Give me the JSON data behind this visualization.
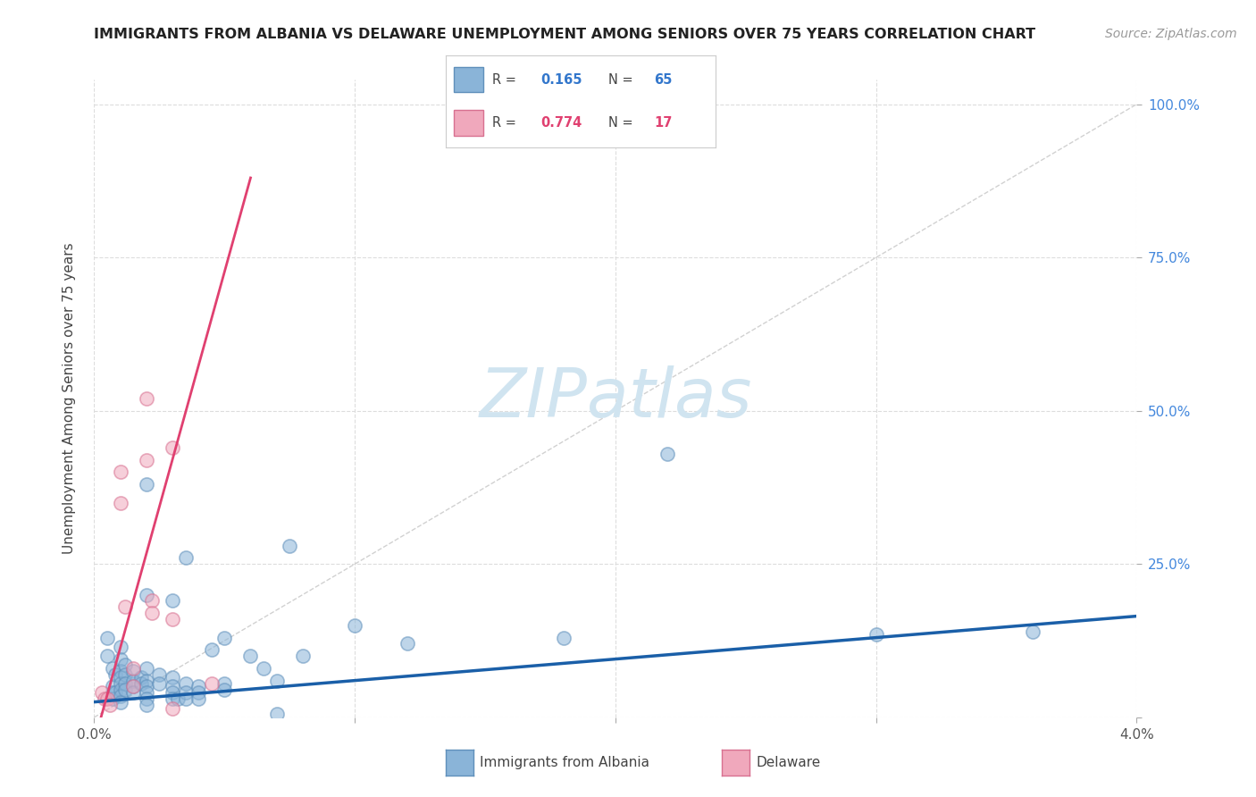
{
  "title": "IMMIGRANTS FROM ALBANIA VS DELAWARE UNEMPLOYMENT AMONG SENIORS OVER 75 YEARS CORRELATION CHART",
  "source": "Source: ZipAtlas.com",
  "ylabel": "Unemployment Among Seniors over 75 years",
  "xlim": [
    0.0,
    0.04
  ],
  "ylim": [
    0.0,
    1.04
  ],
  "background_color": "#ffffff",
  "grid_color": "#dddddd",
  "watermark_text": "ZIPatlas",
  "watermark_color": "#d0e4f0",
  "diagonal_line_color": "#cccccc",
  "blue_scatter": [
    [
      0.0005,
      0.13
    ],
    [
      0.0005,
      0.1
    ],
    [
      0.0007,
      0.08
    ],
    [
      0.0007,
      0.05
    ],
    [
      0.0007,
      0.04
    ],
    [
      0.0007,
      0.03
    ],
    [
      0.0008,
      0.07
    ],
    [
      0.0008,
      0.04
    ],
    [
      0.001,
      0.115
    ],
    [
      0.001,
      0.095
    ],
    [
      0.001,
      0.075
    ],
    [
      0.001,
      0.065
    ],
    [
      0.001,
      0.055
    ],
    [
      0.001,
      0.045
    ],
    [
      0.001,
      0.035
    ],
    [
      0.001,
      0.025
    ],
    [
      0.0012,
      0.085
    ],
    [
      0.0012,
      0.07
    ],
    [
      0.0012,
      0.055
    ],
    [
      0.0012,
      0.045
    ],
    [
      0.0015,
      0.075
    ],
    [
      0.0015,
      0.06
    ],
    [
      0.0015,
      0.05
    ],
    [
      0.0015,
      0.04
    ],
    [
      0.0018,
      0.065
    ],
    [
      0.0018,
      0.055
    ],
    [
      0.002,
      0.38
    ],
    [
      0.002,
      0.2
    ],
    [
      0.002,
      0.08
    ],
    [
      0.002,
      0.06
    ],
    [
      0.002,
      0.05
    ],
    [
      0.002,
      0.04
    ],
    [
      0.002,
      0.03
    ],
    [
      0.002,
      0.02
    ],
    [
      0.0025,
      0.07
    ],
    [
      0.0025,
      0.055
    ],
    [
      0.003,
      0.19
    ],
    [
      0.003,
      0.065
    ],
    [
      0.003,
      0.05
    ],
    [
      0.003,
      0.04
    ],
    [
      0.003,
      0.03
    ],
    [
      0.0032,
      0.03
    ],
    [
      0.0035,
      0.26
    ],
    [
      0.0035,
      0.055
    ],
    [
      0.0035,
      0.04
    ],
    [
      0.0035,
      0.03
    ],
    [
      0.004,
      0.05
    ],
    [
      0.004,
      0.04
    ],
    [
      0.004,
      0.03
    ],
    [
      0.0045,
      0.11
    ],
    [
      0.005,
      0.13
    ],
    [
      0.005,
      0.055
    ],
    [
      0.005,
      0.045
    ],
    [
      0.006,
      0.1
    ],
    [
      0.0065,
      0.08
    ],
    [
      0.007,
      0.06
    ],
    [
      0.007,
      0.005
    ],
    [
      0.0075,
      0.28
    ],
    [
      0.008,
      0.1
    ],
    [
      0.01,
      0.15
    ],
    [
      0.012,
      0.12
    ],
    [
      0.018,
      0.13
    ],
    [
      0.022,
      0.43
    ],
    [
      0.03,
      0.135
    ],
    [
      0.036,
      0.14
    ]
  ],
  "pink_scatter": [
    [
      0.0003,
      0.04
    ],
    [
      0.0004,
      0.03
    ],
    [
      0.0005,
      0.03
    ],
    [
      0.0006,
      0.02
    ],
    [
      0.001,
      0.4
    ],
    [
      0.001,
      0.35
    ],
    [
      0.0012,
      0.18
    ],
    [
      0.0015,
      0.08
    ],
    [
      0.0015,
      0.05
    ],
    [
      0.002,
      0.52
    ],
    [
      0.002,
      0.42
    ],
    [
      0.0022,
      0.19
    ],
    [
      0.0022,
      0.17
    ],
    [
      0.003,
      0.44
    ],
    [
      0.003,
      0.16
    ],
    [
      0.003,
      0.015
    ],
    [
      0.0045,
      0.055
    ]
  ],
  "blue_dot_color": "#8ab4d8",
  "blue_edge_color": "#6090bb",
  "pink_dot_color": "#f0a8bc",
  "pink_edge_color": "#d87090",
  "blue_line_color": "#1a5fa8",
  "pink_line_color": "#e04070",
  "blue_line": [
    0.0,
    0.025,
    0.04,
    0.165
  ],
  "pink_line": [
    0.0,
    -0.04,
    0.006,
    0.88
  ],
  "scatter_size": 120,
  "scatter_alpha": 0.55,
  "scatter_linewidth": 1.2,
  "legend_R_blue": "0.165",
  "legend_N_blue": "65",
  "legend_R_pink": "0.774",
  "legend_N_pink": "17",
  "legend_label_blue": "Immigrants from Albania",
  "legend_label_pink": "Delaware"
}
